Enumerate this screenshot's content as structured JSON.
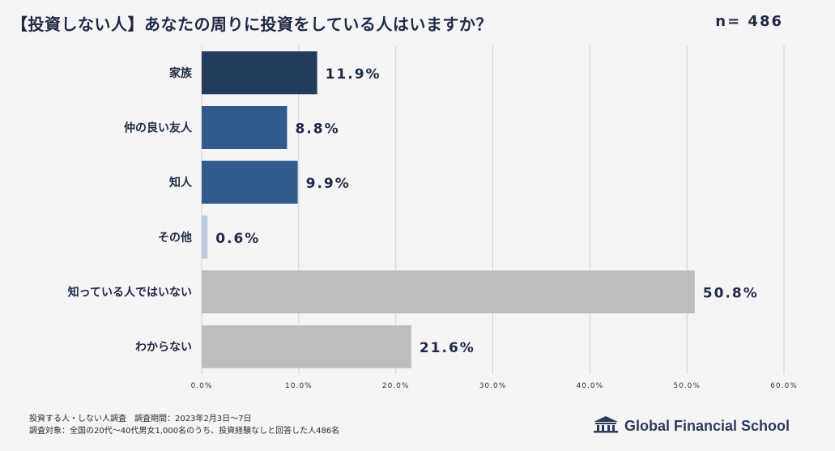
{
  "header": {
    "title": "【投資しない人】あなたの周りに投資をしている人はいますか？",
    "sample": "n= 486"
  },
  "chart_data": {
    "type": "bar",
    "orientation": "horizontal",
    "categories": [
      "家族",
      "仲の良い友人",
      "知人",
      "その他",
      "知っている人ではいない",
      "わからない"
    ],
    "values": [
      11.9,
      8.8,
      9.9,
      0.6,
      50.8,
      21.6
    ],
    "value_labels": [
      "11.9%",
      "8.8%",
      "9.9%",
      "0.6%",
      "50.8%",
      "21.6%"
    ],
    "bar_colors": [
      "#233b5c",
      "#325a8c",
      "#325a8c",
      "#b9c9de",
      "#bdbdbd",
      "#bdbdbd"
    ],
    "xlim": [
      0,
      60
    ],
    "xticks": [
      "0.0%",
      "10.0%",
      "20.0%",
      "30.0%",
      "40.0%",
      "50.0%",
      "60.0%"
    ],
    "grid": true
  },
  "footer": {
    "note1": "投資する人・しない人調査　調査期間：2023年2月3日〜7日",
    "note2": "調査対象：全国の20代〜40代男女1,000名のうち、投資経験なしと回答した人486名",
    "brand": "Global Financial School"
  },
  "colors": {
    "title": "#1f2a44",
    "grid": "#cfcfcf",
    "background": "#f5f5f7"
  }
}
